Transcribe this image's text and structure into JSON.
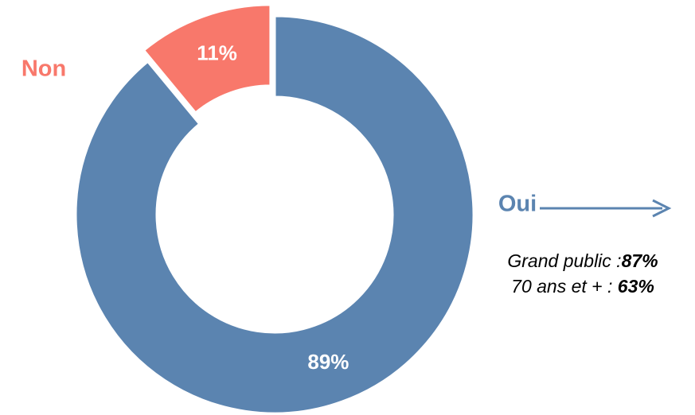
{
  "chart_data": {
    "type": "donut",
    "categories": [
      "Oui",
      "Non"
    ],
    "values": [
      89,
      11
    ],
    "value_labels": [
      "89%",
      "11%"
    ],
    "colors": [
      "#5b84b0",
      "#f8786b"
    ],
    "annotations": [
      {
        "label": "Grand public :",
        "value": "87%"
      },
      {
        "label": "70 ans et + : ",
        "value": "63%"
      }
    ]
  }
}
